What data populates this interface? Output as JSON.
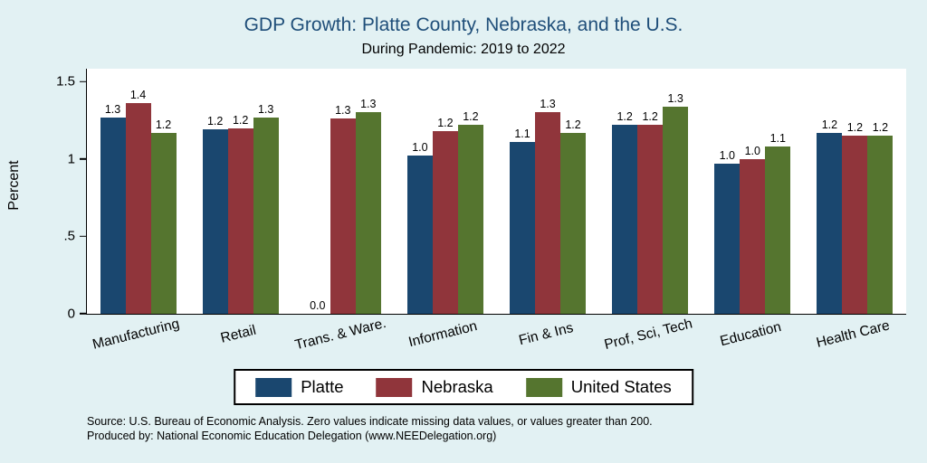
{
  "title": "GDP Growth: Platte County, Nebraska, and the U.S.",
  "subtitle": "During Pandemic: 2019 to 2022",
  "ylabel": "Percent",
  "colors": {
    "background": "#e2f1f3",
    "title": "#1f4e79",
    "platte": "#1a476f",
    "nebraska": "#90353b",
    "united_states": "#55752f"
  },
  "yticks": [
    {
      "label": "0",
      "value": 0
    },
    {
      "label": ".5",
      "value": 0.5
    },
    {
      "label": "1",
      "value": 1
    },
    {
      "label": "1.5",
      "value": 1.5
    }
  ],
  "legend": {
    "entries": [
      "Platte",
      "Nebraska",
      "United States"
    ]
  },
  "notes": [
    "Source: U.S. Bureau of Economic Analysis. Zero values indicate missing data values, or values greater than 200.",
    "Produced by: National Economic Education Delegation (www.NEEDelegation.org)"
  ],
  "chart_data": {
    "type": "bar",
    "title": "GDP Growth: Platte County, Nebraska, and the U.S.",
    "subtitle": "During Pandemic: 2019 to 2022",
    "xlabel": "",
    "ylabel": "Percent",
    "ylim": [
      0,
      1.5
    ],
    "grid": false,
    "legend_position": "bottom",
    "categories": [
      "Manufacturing",
      "Retail",
      "Trans. & Ware.",
      "Information",
      "Fin & Ins",
      "Prof, Sci, Tech",
      "Education",
      "Health Care"
    ],
    "series": [
      {
        "name": "Platte",
        "color": "#1a476f",
        "values": [
          1.27,
          1.19,
          0.0,
          1.02,
          1.11,
          1.22,
          0.97,
          1.17
        ],
        "labels": [
          "1.3",
          "1.2",
          "0.0",
          "1.0",
          "1.1",
          "1.2",
          "1.0",
          "1.2"
        ]
      },
      {
        "name": "Nebraska",
        "color": "#90353b",
        "values": [
          1.36,
          1.2,
          1.26,
          1.18,
          1.3,
          1.22,
          1.0,
          1.15
        ],
        "labels": [
          "1.4",
          "1.2",
          "1.3",
          "1.2",
          "1.3",
          "1.2",
          "1.0",
          "1.2"
        ]
      },
      {
        "name": "United States",
        "color": "#55752f",
        "values": [
          1.17,
          1.27,
          1.3,
          1.22,
          1.17,
          1.34,
          1.08,
          1.15
        ],
        "labels": [
          "1.2",
          "1.3",
          "1.3",
          "1.2",
          "1.2",
          "1.3",
          "1.1",
          "1.2"
        ]
      }
    ]
  }
}
